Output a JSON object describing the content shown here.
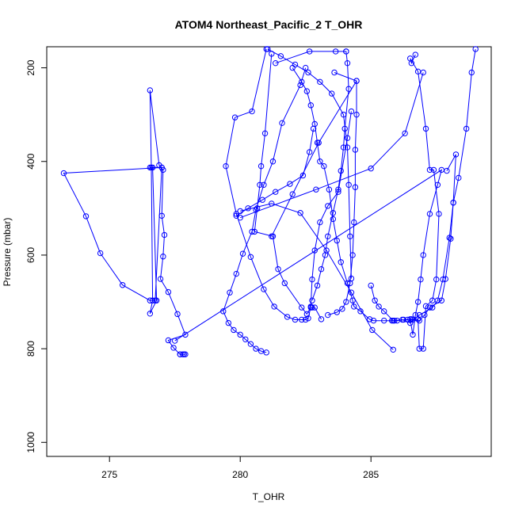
{
  "chart_data": {
    "type": "scatter",
    "title": "ATOM4 Northeast_Pacific_2 T_OHR",
    "xlabel": "T_OHR",
    "ylabel": "Pressure (mbar)",
    "xlim": [
      272.6,
      289.6
    ],
    "ylim": [
      1030,
      155
    ],
    "y_reversed": true,
    "grid": false,
    "x_ticks": [
      275,
      280,
      285
    ],
    "x_tick_labels": [
      "275",
      "280",
      "285"
    ],
    "y_ticks": [
      200,
      400,
      600,
      800,
      1000
    ],
    "y_tick_labels": [
      "200",
      "400",
      "600",
      "800",
      "1000"
    ],
    "marker": "open-circle",
    "line_color": "#0000ff",
    "series": [
      {
        "x": [
          277.9,
          277.8,
          277.7,
          277.85,
          277.7,
          277.45,
          277.25,
          277.9,
          277.6,
          277.25,
          276.95,
          277.05,
          277.1,
          277.0,
          277.05,
          276.9,
          276.55,
          276.6,
          276.65,
          276.55,
          276.8,
          276.65,
          276.55,
          277.0,
          273.25,
          274.1,
          274.65,
          275.5,
          276.55,
          276.75,
          277.0
        ],
        "y": [
          812,
          812,
          812,
          812,
          812,
          798,
          782,
          770,
          726,
          679,
          651,
          603,
          557,
          516,
          418,
          408,
          248,
          413,
          697,
          725,
          697,
          413,
          413,
          413,
          425,
          517,
          596,
          664,
          697,
          697,
          413
        ]
      },
      {
        "x": [
          277.5,
          287.7,
          287.55,
          287.25,
          287.0,
          286.9,
          286.8,
          286.7,
          286.6,
          286.5,
          286.55,
          286.8,
          286.85,
          287.0,
          287.1,
          287.35,
          287.5,
          287.6,
          287.4,
          287.25,
          287.1,
          286.8,
          286.5,
          286.55,
          286.7
        ],
        "y": [
          783,
          418,
          450,
          512,
          600,
          652,
          700,
          728,
          770,
          737,
          737,
          737,
          800,
          800,
          709,
          697,
          652,
          512,
          418,
          418,
          330,
          208,
          180,
          190,
          172
        ]
      },
      {
        "x": [
          287.9,
          288.25,
          288.15,
          288.05,
          287.85,
          287.7,
          287.25,
          287.05,
          286.85,
          286.6,
          286.4,
          286.25,
          286.0,
          285.85,
          285.5,
          285.3,
          285.15,
          285.0
        ],
        "y": [
          420,
          385,
          488,
          565,
          651,
          697,
          712,
          728,
          740,
          738,
          738,
          738,
          740,
          740,
          720,
          710,
          697,
          665
        ]
      },
      {
        "x": [
          289.0,
          288.85,
          288.65,
          288.35,
          288.15,
          288.0,
          287.75,
          287.55,
          287.35,
          286.85,
          286.5,
          286.2,
          285.9,
          285.8,
          285.5,
          285.1,
          284.95,
          284.6,
          284.35,
          284.3,
          284.1,
          283.85,
          283.7,
          283.55,
          283.4,
          283.2,
          283.05,
          282.95,
          282.85,
          282.7,
          282.55,
          282.35,
          282.0
        ],
        "y": [
          160,
          210,
          330,
          435,
          488,
          563,
          652,
          697,
          712,
          728,
          745,
          738,
          740,
          740,
          740,
          740,
          737,
          720,
          710,
          697,
          660,
          615,
          569,
          523,
          460,
          410,
          400,
          360,
          320,
          280,
          250,
          230,
          200
        ]
      },
      {
        "x": [
          282.5,
          282.3,
          281.6,
          281.25,
          280.9,
          280.6,
          280.45,
          280.1,
          279.85,
          279.6,
          279.35,
          279.55,
          279.75,
          280.0,
          280.2,
          280.4,
          280.6,
          280.8,
          281.0
        ],
        "y": [
          200,
          237,
          318,
          400,
          450,
          503,
          550,
          597,
          640,
          680,
          720,
          745,
          760,
          770,
          780,
          790,
          800,
          805,
          808
        ]
      },
      {
        "x": [
          281.0,
          280.45,
          279.8,
          279.45,
          279.85,
          280.4,
          280.9,
          281.3,
          281.8,
          282.1,
          282.35,
          282.5,
          282.6,
          282.7,
          282.75,
          282.85,
          283.05,
          283.35,
          283.75,
          284.1,
          284.25
        ],
        "y": [
          160,
          293,
          306,
          410,
          512,
          604,
          673,
          710,
          732,
          738,
          738,
          738,
          735,
          710,
          652,
          590,
          530,
          495,
          465,
          350,
          293
        ]
      },
      {
        "x": [
          281.05,
          281.55,
          282.1,
          282.6,
          283.05,
          283.5,
          283.95,
          284.1,
          284.15,
          284.2,
          284.25
        ],
        "y": [
          160,
          175,
          193,
          210,
          230,
          255,
          300,
          370,
          450,
          560,
          650
        ]
      },
      {
        "x": [
          281.35,
          282.65,
          283.65,
          284.05,
          284.05,
          284.1,
          284.15,
          284.0,
          283.95,
          283.85,
          283.75,
          283.55,
          283.35,
          283.25,
          283.1,
          282.95,
          282.75
        ],
        "y": [
          190,
          165,
          165,
          165,
          165,
          190,
          245,
          330,
          370,
          420,
          460,
          510,
          560,
          600,
          630,
          665,
          697
        ]
      },
      {
        "x": [
          281.2,
          280.95,
          280.8,
          280.75,
          280.65,
          280.55,
          281.25,
          281.45,
          281.7,
          282.35,
          282.55,
          282.7,
          282.75,
          282.85,
          283.1
        ],
        "y": [
          170,
          340,
          410,
          450,
          500,
          550,
          560,
          630,
          660,
          712,
          726,
          712,
          712,
          712,
          737
        ]
      },
      {
        "x": [
          279.85,
          280.3,
          280.85,
          281.35,
          281.9,
          282.4,
          282.65,
          282.8
        ],
        "y": [
          516,
          500,
          482,
          465,
          448,
          430,
          380,
          330
        ]
      },
      {
        "x": [
          280.0,
          281.2,
          282.3,
          283.3,
          284.25,
          285.05,
          285.85
        ],
        "y": [
          506,
          490,
          510,
          590,
          680,
          760,
          802
        ]
      },
      {
        "x": [
          284.45,
          284.45,
          284.4,
          284.4,
          284.35,
          284.3,
          284.2,
          284.05,
          283.9,
          283.7,
          283.35
        ],
        "y": [
          228,
          300,
          375,
          455,
          530,
          600,
          660,
          700,
          715,
          722,
          728
        ]
      },
      {
        "x": [
          280.0,
          282.9,
          285.0,
          286.3,
          287.0
        ],
        "y": [
          520,
          460,
          415,
          340,
          210
        ]
      },
      {
        "x": [
          283.6,
          284.45,
          283.0,
          282.0,
          281.2
        ],
        "y": [
          210,
          228,
          360,
          470,
          560
        ]
      }
    ]
  }
}
